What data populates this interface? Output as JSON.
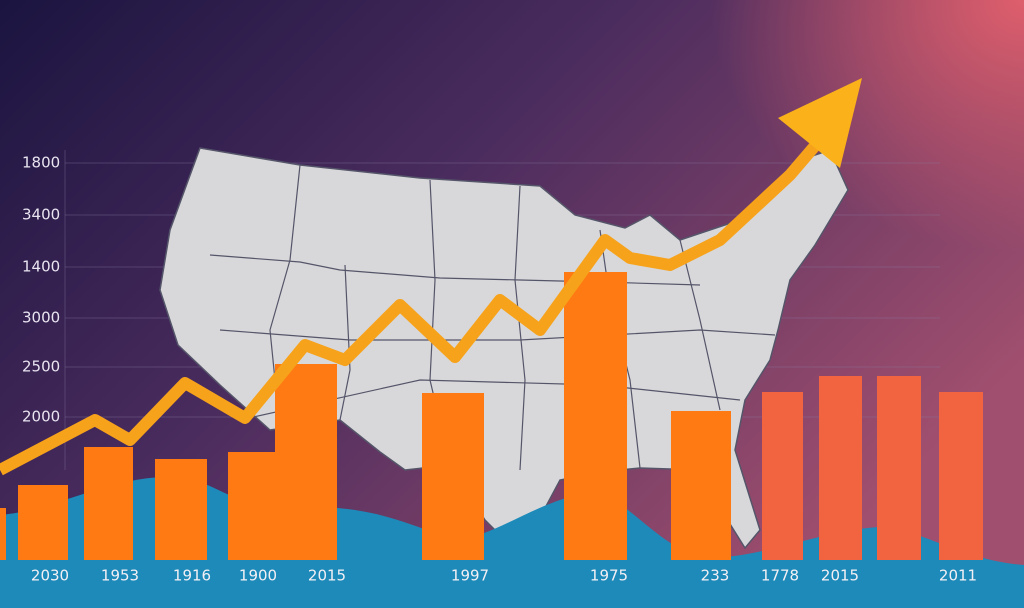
{
  "y_axis_labels": [
    "1800",
    "3400",
    "1400",
    "3000",
    "2500",
    "2000"
  ],
  "x_axis_labels": [
    "2030",
    "1953",
    "1916",
    "1900",
    "2015",
    "1997",
    "1975",
    "233",
    "1778",
    "2015",
    "2011"
  ]
}
